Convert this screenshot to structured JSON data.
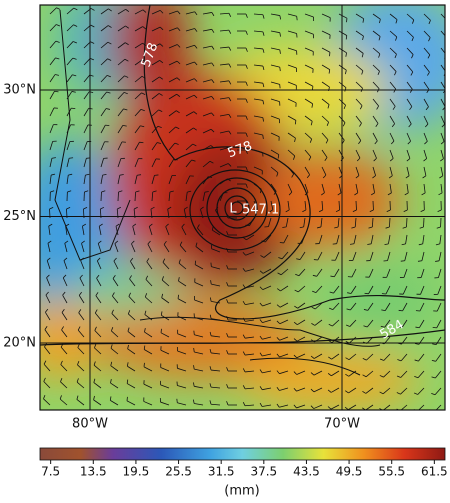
{
  "map": {
    "lat_ticks": [
      {
        "value": 30,
        "label": "30°N"
      },
      {
        "value": 25,
        "label": "25°N"
      },
      {
        "value": 20,
        "label": "20°N"
      }
    ],
    "lon_ticks": [
      {
        "value": 80,
        "label": "80°W"
      },
      {
        "value": 70,
        "label": "70°W"
      }
    ],
    "contour_labels": [
      "578",
      "578",
      "584"
    ],
    "low_marker": "L",
    "low_value": "547.1"
  },
  "colorbar": {
    "range": [
      6,
      63
    ],
    "ticks": [
      7.5,
      13.5,
      19.5,
      25.5,
      31.5,
      37.5,
      43.5,
      49.5,
      55.5,
      61.5
    ],
    "label": "(mm)"
  }
}
